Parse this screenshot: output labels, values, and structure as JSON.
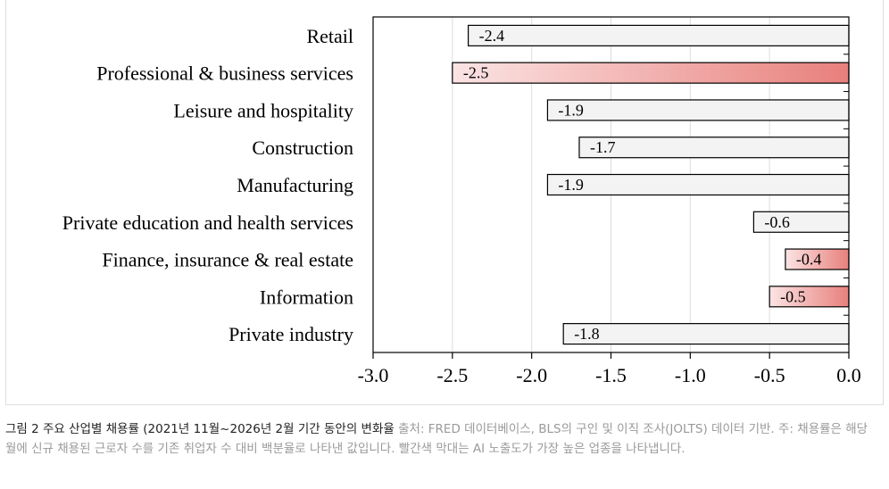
{
  "chart_data": {
    "type": "bar",
    "orientation": "horizontal",
    "categories": [
      "Retail",
      "Professional & business services",
      "Leisure and hospitality",
      "Construction",
      "Manufacturing",
      "Private education and health services",
      "Finance, insurance & real estate",
      "Information",
      "Private industry"
    ],
    "values": [
      -2.4,
      -2.5,
      -1.9,
      -1.7,
      -1.9,
      -0.6,
      -0.4,
      -0.5,
      -1.8
    ],
    "value_labels": [
      "-2.4",
      "-2.5",
      "-1.9",
      "-1.7",
      "-1.9",
      "-0.6",
      "-0.4",
      "-0.5",
      "-1.8"
    ],
    "highlighted": [
      false,
      true,
      false,
      false,
      false,
      false,
      true,
      true,
      false
    ],
    "xticks": [
      "-3.0",
      "-2.5",
      "-2.0",
      "-1.5",
      "-1.0",
      "-0.5",
      "0.0"
    ],
    "xlim": [
      -3.0,
      0.0
    ],
    "grid": "vertical",
    "title": "",
    "xlabel": "",
    "ylabel": ""
  },
  "colors": {
    "bar_fill": "#f3f3f3",
    "highlight_light": "#fbe4e4",
    "highlight_dark": "#e8807c",
    "grid": "#dcdcdc",
    "axis": "#000000"
  },
  "caption": {
    "label": "그림 2 주요 산업별 채용률 (2021년 11월~2026년 2월 기간 동안의 변화율",
    "source": " 출처: FRED 데이터베이스, BLS의 구인 및 이직 조사(JOLTS) 데이터 기반. 주: 채용률은 해당 월에 신규 채용된 근로자 수를 기존 취업자 수 대비 백분율로 나타낸 값입니다. 빨간색 막대는 AI 노출도가 가장 높은 업종을 나타냅니다."
  }
}
